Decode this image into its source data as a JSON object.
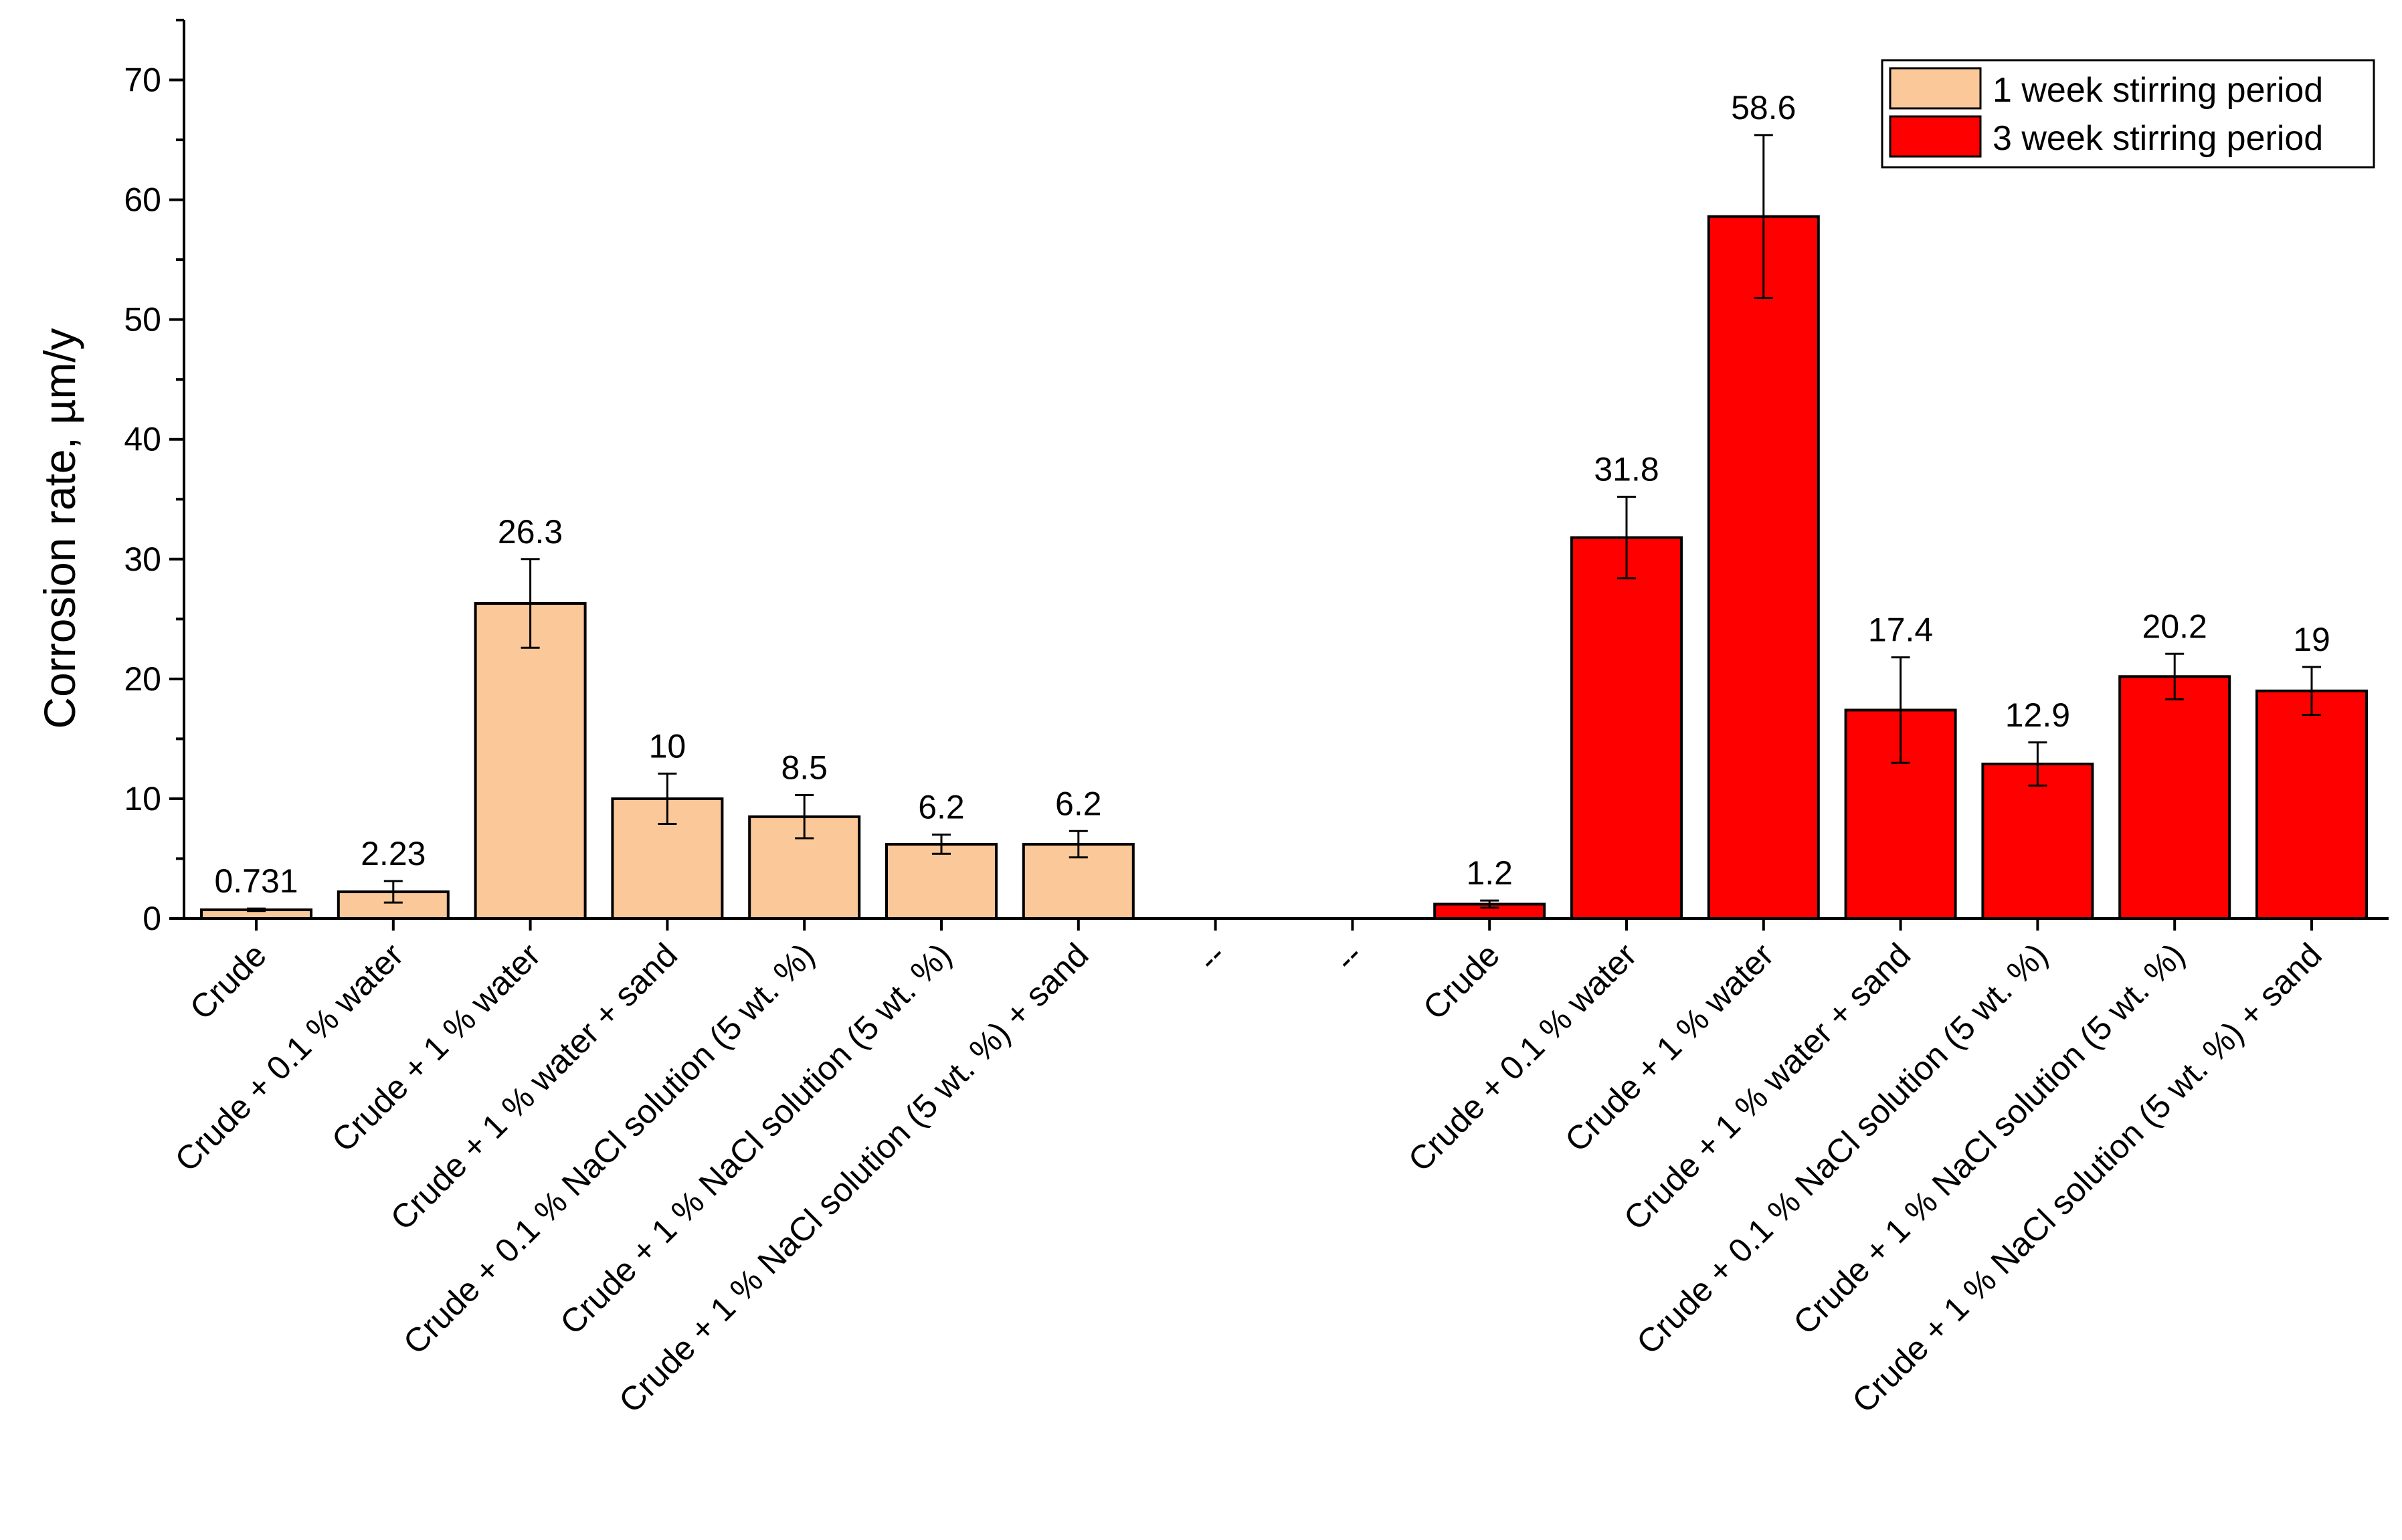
{
  "chart_data": {
    "type": "bar",
    "title": "",
    "xlabel": "",
    "ylabel": "Corrosion rate, µm/y",
    "ylim": [
      0,
      75
    ],
    "yticks": [
      0,
      10,
      20,
      30,
      40,
      50,
      60,
      70
    ],
    "legend_position": "top-right",
    "categories": [
      "Crude",
      "Crude + 0.1 % water",
      "Crude + 1 % water",
      "Crude + 1 % water + sand",
      "Crude + 0.1 % NaCl solution (5 wt. %)",
      "Crude + 1 % NaCl solution (5 wt. %)",
      "Crude + 1 % NaCl solution (5 wt. %) + sand",
      "--",
      "--",
      "Crude",
      "Crude + 0.1 % water",
      "Crude + 1 % water",
      "Crude + 1 % water + sand",
      "Crude + 0.1 % NaCl solution (5 wt. %)",
      "Crude + 1 % NaCl solution (5 wt. %)",
      "Crude + 1 % NaCl solution (5 wt. %) + sand"
    ],
    "series": [
      {
        "name": "1 week stirring period",
        "color": "#FBC899",
        "values": [
          0.731,
          2.23,
          26.3,
          10,
          8.5,
          6.2,
          6.2,
          null,
          null,
          null,
          null,
          null,
          null,
          null,
          null,
          null
        ],
        "labels": [
          "0.731",
          "2.23",
          "26.3",
          "10",
          "8.5",
          "6.2",
          "6.2",
          "",
          "",
          "",
          "",
          "",
          "",
          "",
          "",
          ""
        ],
        "errors": [
          0.1,
          0.9,
          3.7,
          2.1,
          1.8,
          0.8,
          1.1,
          null,
          null,
          null,
          null,
          null,
          null,
          null,
          null,
          null
        ]
      },
      {
        "name": "3 week stirring period",
        "color": "#FF0000",
        "values": [
          null,
          null,
          null,
          null,
          null,
          null,
          null,
          null,
          null,
          1.2,
          31.8,
          58.6,
          17.4,
          12.9,
          20.2,
          19
        ],
        "labels": [
          "",
          "",
          "",
          "",
          "",
          "",
          "",
          "",
          "",
          "1.2",
          "31.8",
          "58.6",
          "17.4",
          "12.9",
          "20.2",
          "19"
        ],
        "errors": [
          null,
          null,
          null,
          null,
          null,
          null,
          null,
          null,
          null,
          0.3,
          3.4,
          6.8,
          4.4,
          1.8,
          1.9,
          2.0
        ]
      }
    ]
  }
}
